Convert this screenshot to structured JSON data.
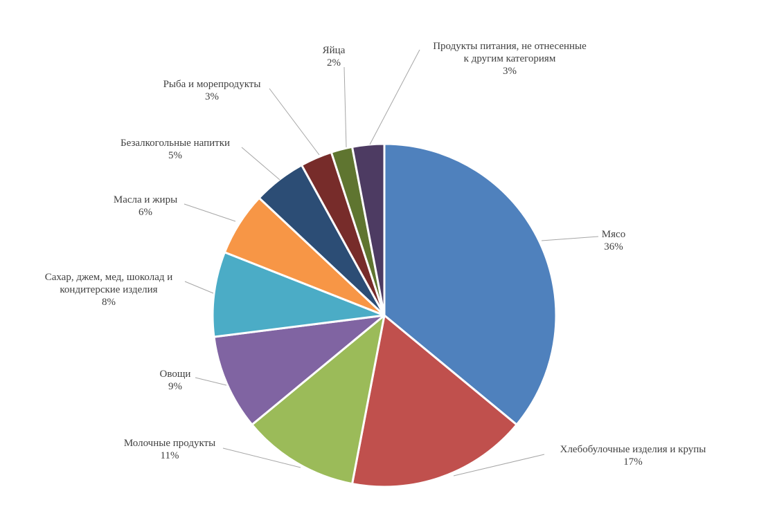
{
  "chart_data": {
    "type": "pie",
    "title": "",
    "center": [
      555,
      456
    ],
    "radius": 248,
    "start_angle_deg": 0,
    "direction": "clockwise",
    "slices": [
      {
        "label": "Мясо",
        "value": 36,
        "pct_text": "36%",
        "color": "#4F81BD",
        "label_pos": [
          886,
          334
        ],
        "label_lines": [
          "Мясо"
        ],
        "leader": [
          [
            782,
            348
          ],
          [
            864,
            342
          ]
        ]
      },
      {
        "label": "Хлебобулочные изделия и крупы",
        "value": 17,
        "pct_text": "17%",
        "color": "#C0504D",
        "label_pos": [
          914,
          645
        ],
        "label_lines": [
          "Хлебобулочные изделия и крупы"
        ],
        "leader": [
          [
            655,
            688
          ],
          [
            786,
            657
          ]
        ]
      },
      {
        "label": "Молочные продукты",
        "value": 11,
        "pct_text": "11%",
        "color": "#9BBB59",
        "label_pos": [
          245,
          636
        ],
        "label_lines": [
          "Молочные продукты"
        ],
        "leader": [
          [
            434,
            676
          ],
          [
            322,
            648
          ]
        ]
      },
      {
        "label": "Овощи",
        "value": 9,
        "pct_text": "9%",
        "color": "#8064A2",
        "label_pos": [
          253,
          536
        ],
        "label_lines": [
          "Овощи"
        ],
        "leader": [
          [
            327,
            557
          ],
          [
            282,
            546
          ]
        ]
      },
      {
        "label": "Сахар, джем, мед, шоколад и кондитерские изделия",
        "value": 8,
        "pct_text": "8%",
        "color": "#4BACC6",
        "label_pos": [
          157,
          396
        ],
        "label_lines": [
          "Сахар, джем, мед, шоколад и",
          "кондитерские изделия"
        ],
        "leader": [
          [
            308,
            424
          ],
          [
            267,
            407
          ]
        ]
      },
      {
        "label": "Масла и жиры",
        "value": 6,
        "pct_text": "6%",
        "color": "#F79646",
        "label_pos": [
          210,
          284
        ],
        "label_lines": [
          "Масла и жиры"
        ],
        "leader": [
          [
            340,
            320
          ],
          [
            266,
            295
          ]
        ]
      },
      {
        "label": "Безалкогольные напитки",
        "value": 5,
        "pct_text": "5%",
        "color": "#2C4D75",
        "label_pos": [
          253,
          202
        ],
        "label_lines": [
          "Безалкогольные напитки"
        ],
        "leader": [
          [
            404,
            260
          ],
          [
            349,
            213
          ]
        ]
      },
      {
        "label": "Рыба и морепродукты",
        "value": 3,
        "pct_text": "3%",
        "color": "#772C2A",
        "label_pos": [
          306,
          117
        ],
        "label_lines": [
          "Рыба и морепродукты"
        ],
        "leader": [
          [
            461,
            224
          ],
          [
            389,
            128
          ]
        ]
      },
      {
        "label": "Яйца",
        "value": 2,
        "pct_text": "2%",
        "color": "#5F7530",
        "label_pos": [
          482,
          68
        ],
        "label_lines": [
          "Яйца"
        ],
        "leader": [
          [
            500,
            213
          ],
          [
            497,
            97
          ]
        ]
      },
      {
        "label": "Продукты питания, не отнесенные к другим категориям",
        "value": 3,
        "pct_text": "3%",
        "color": "#4D3B62",
        "label_pos": [
          736,
          62
        ],
        "label_lines": [
          "Продукты питания, не отнесенные",
          "к другим категориям"
        ],
        "leader": [
          [
            534,
            209
          ],
          [
            606,
            72
          ]
        ]
      }
    ],
    "legend": null,
    "leader_color": "#A6A6A6",
    "slice_border": "#FFFFFF"
  }
}
